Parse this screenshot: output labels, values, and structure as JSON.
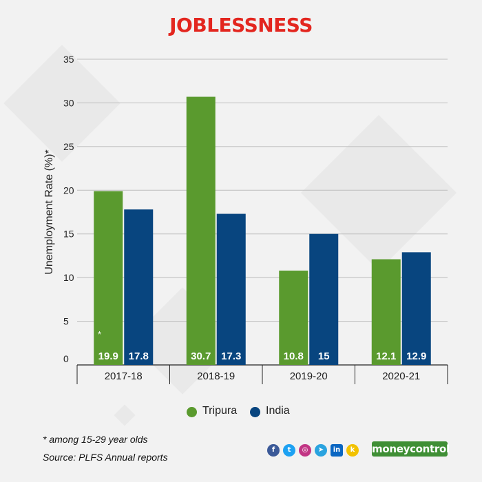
{
  "title": "JOBLESSNESS",
  "footnote": "* among 15-29 year olds",
  "source": "Source: PLFS Annual reports",
  "asterisk_mark": "*",
  "brand": "moneycontrol",
  "social_icons": [
    "facebook-icon",
    "twitter-icon",
    "instagram-icon",
    "telegram-icon",
    "linkedin-icon",
    "koo-icon"
  ],
  "colors": {
    "tripura": "#5a9a2e",
    "india": "#08457f",
    "title": "#e3261f",
    "brand": "#3f8f35"
  },
  "chart_data": {
    "type": "bar",
    "title": "JOBLESSNESS",
    "xlabel": "",
    "ylabel": "Unemployment Rate (%)*",
    "ylim": [
      0,
      35
    ],
    "yticks": [
      0,
      5,
      10,
      15,
      20,
      25,
      30,
      35
    ],
    "grid": true,
    "legend_position": "bottom",
    "categories": [
      "2017-18",
      "2018-19",
      "2019-20",
      "2020-21"
    ],
    "series": [
      {
        "name": "Tripura",
        "values": [
          19.9,
          30.7,
          10.8,
          12.1
        ],
        "labels": [
          "19.9",
          "30.7",
          "10.8",
          "12.1"
        ],
        "color": "#5a9a2e"
      },
      {
        "name": "India",
        "values": [
          17.8,
          17.3,
          15,
          12.9
        ],
        "labels": [
          "17.8",
          "17.3",
          "15",
          "12.9"
        ],
        "color": "#08457f"
      }
    ]
  }
}
